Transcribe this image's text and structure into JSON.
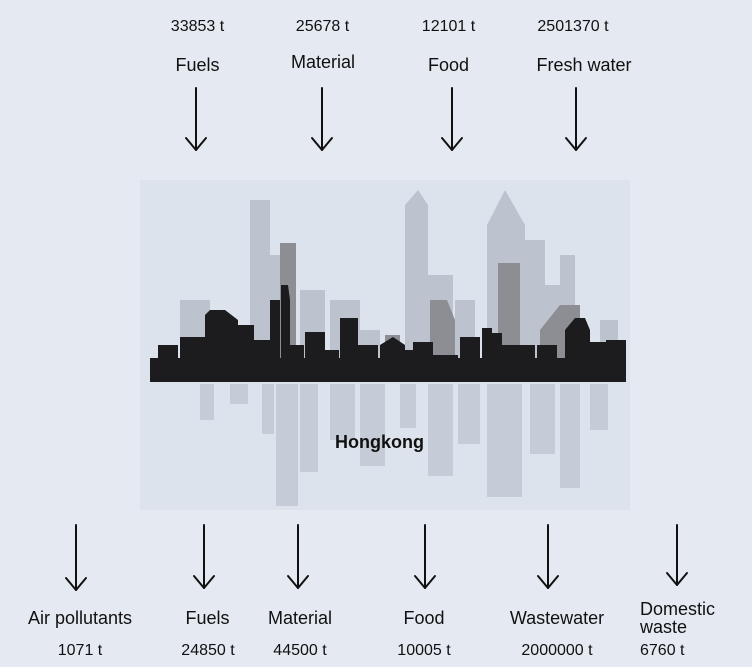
{
  "city": {
    "name": "Hongkong"
  },
  "inputs": [
    {
      "label": "Fuels",
      "value": "33853 t"
    },
    {
      "label": "Material",
      "value": "25678 t"
    },
    {
      "label": "Food",
      "value": "12101 t"
    },
    {
      "label": "Fresh water",
      "value": "2501370 t"
    }
  ],
  "outputs": [
    {
      "label": "Air pollutants",
      "value": "1071 t"
    },
    {
      "label": "Fuels",
      "value": "24850 t"
    },
    {
      "label": "Material",
      "value": "44500 t"
    },
    {
      "label": "Food",
      "value": "10005 t"
    },
    {
      "label": "Wastewater",
      "value": "2000000 t"
    },
    {
      "label": "Domestic waste",
      "label_lines": [
        "Domestic",
        "waste"
      ],
      "value": "6760 t"
    }
  ],
  "colors": {
    "background": "#e4e9f2",
    "panel": "#dde3ec",
    "skyline_dark": "#1c1c1e",
    "skyline_mid": "#8c8e93",
    "skyline_light": "#bcc3ce",
    "reflection": "#c5ccd7",
    "arrow": "#111111"
  },
  "icons": {
    "arrow": "arrow-down-icon",
    "skyline": "city-skyline-icon"
  }
}
